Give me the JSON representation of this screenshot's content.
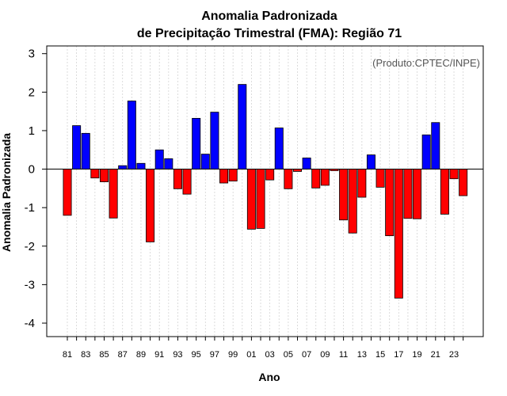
{
  "chart_data": {
    "type": "bar",
    "title": "Anomalia Padronizada",
    "subtitle": "de Precipitação Trimestral (FMA): Região 71",
    "xlabel": "Ano",
    "ylabel": "Anomalia Padronizada",
    "credit": "(Produto:CPTEC/INPE)",
    "ylim": [
      -4.35,
      3.2
    ],
    "yticks": [
      "-4",
      "-3",
      "-2",
      "-1",
      "0",
      "1",
      "2",
      "3"
    ],
    "xtick_labels": [
      "81",
      "83",
      "85",
      "87",
      "89",
      "91",
      "93",
      "95",
      "97",
      "99",
      "01",
      "03",
      "05",
      "07",
      "09",
      "11",
      "13",
      "15",
      "17",
      "19",
      "21",
      "23"
    ],
    "categories": [
      "1981",
      "1982",
      "1983",
      "1984",
      "1985",
      "1986",
      "1987",
      "1988",
      "1989",
      "1990",
      "1991",
      "1992",
      "1993",
      "1994",
      "1995",
      "1996",
      "1997",
      "1998",
      "1999",
      "2000",
      "2001",
      "2002",
      "2003",
      "2004",
      "2005",
      "2006",
      "2007",
      "2008",
      "2009",
      "2010",
      "2011",
      "2012",
      "2013",
      "2014",
      "2015",
      "2016",
      "2017",
      "2018",
      "2019",
      "2020",
      "2021",
      "2022",
      "2023",
      "2024"
    ],
    "values": [
      -1.2,
      1.13,
      0.93,
      -0.23,
      -0.33,
      -1.27,
      0.09,
      1.77,
      0.15,
      -1.89,
      0.5,
      0.27,
      -0.51,
      -0.65,
      1.32,
      0.39,
      1.48,
      -0.36,
      -0.31,
      2.2,
      -1.56,
      -1.54,
      -0.28,
      1.07,
      -0.51,
      -0.06,
      0.29,
      -0.49,
      -0.42,
      -0.04,
      -1.32,
      -1.66,
      -0.73,
      0.37,
      -0.47,
      -1.73,
      -3.35,
      -1.28,
      -1.29,
      0.89,
      1.21,
      -1.17,
      -0.25,
      -0.69
    ],
    "colors": {
      "positive": "#0000ff",
      "negative": "#ff0000",
      "grid": "#d3d3d3",
      "zero_line": "#000000"
    },
    "grid": true
  }
}
